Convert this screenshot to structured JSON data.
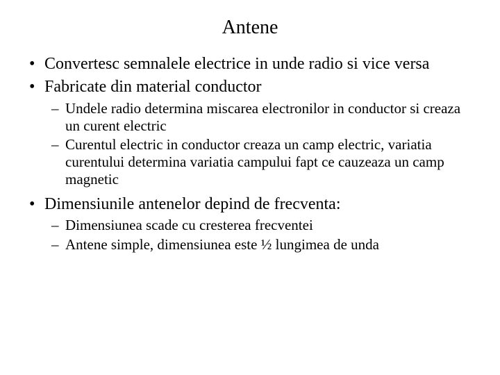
{
  "title": "Antene",
  "bullets": [
    {
      "text": "Convertesc semnalele electrice in unde radio si vice versa",
      "sub": []
    },
    {
      "text": "Fabricate din material conductor",
      "sub": [
        "Undele radio determina miscarea electronilor in conductor si creaza un curent electric",
        "Curentul electric in conductor creaza un camp electric, variatia curentului determina variatia campului fapt ce cauzeaza un camp magnetic"
      ]
    },
    {
      "text": "Dimensiunile antenelor depind de frecventa:",
      "sub": [
        "Dimensiunea scade cu cresterea frecventei",
        "Antene simple, dimensiunea este ½ lungimea de unda"
      ]
    }
  ],
  "colors": {
    "background": "#ffffff",
    "text": "#000000"
  },
  "typography": {
    "family": "Times New Roman",
    "title_fontsize": 28,
    "level1_fontsize": 24,
    "level2_fontsize": 21
  }
}
